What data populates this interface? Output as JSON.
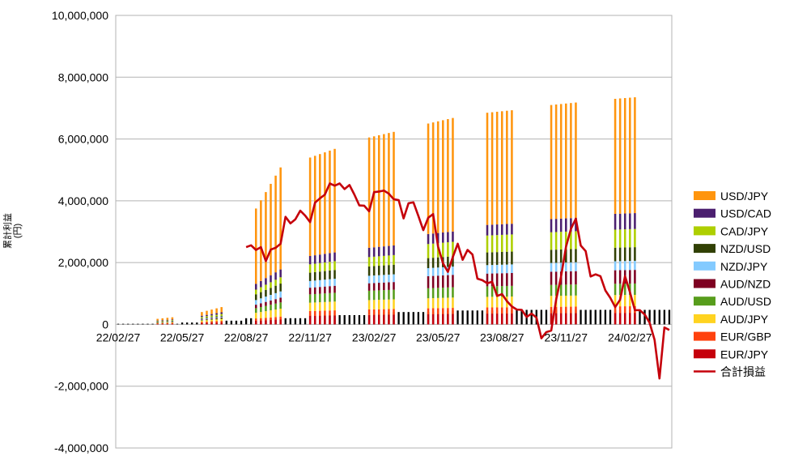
{
  "chart_data": {
    "type": "bar",
    "stacked": true,
    "ylabel": "累計利益\n(円)",
    "ylim": [
      -4000000,
      10000000
    ],
    "y_ticks": [
      "10,000,000",
      "8,000,000",
      "6,000,000",
      "4,000,000",
      "2,000,000",
      "0",
      "-2,000,000",
      "-4,000,000"
    ],
    "y_tick_values": [
      10000000,
      8000000,
      6000000,
      4000000,
      2000000,
      0,
      -2000000,
      -4000000
    ],
    "x_ticks": [
      "22/02/27",
      "22/05/27",
      "22/08/27",
      "22/11/27",
      "23/02/27",
      "23/05/27",
      "23/08/27",
      "23/11/27",
      "24/02/27"
    ],
    "x_tick_index": [
      0,
      13,
      26,
      39,
      52,
      65,
      78,
      91,
      104
    ],
    "grid": true,
    "legend_position": "right",
    "period_count": 113,
    "series_order": [
      "EUR/JPY",
      "EUR/GBP",
      "AUD/JPY",
      "AUD/USD",
      "AUD/NZD",
      "NZD/JPY",
      "NZD/USD",
      "CAD/JPY",
      "USD/CAD",
      "USD/JPY"
    ],
    "legend": [
      {
        "name": "USD/JPY",
        "color": "#ff950e"
      },
      {
        "name": "USD/CAD",
        "color": "#4b1f6f"
      },
      {
        "name": "CAD/JPY",
        "color": "#aecf00"
      },
      {
        "name": "NZD/USD",
        "color": "#314004"
      },
      {
        "name": "NZD/JPY",
        "color": "#83caff"
      },
      {
        "name": "AUD/NZD",
        "color": "#7e0021"
      },
      {
        "name": "AUD/USD",
        "color": "#579d1c"
      },
      {
        "name": "AUD/JPY",
        "color": "#ffd320"
      },
      {
        "name": "EUR/GBP",
        "color": "#ff420e"
      },
      {
        "name": "EUR/JPY",
        "color": "#c5000b"
      }
    ],
    "total_series": {
      "name": "合計損益",
      "color": "#c5000b"
    },
    "baseline_bars": [
      {
        "from": 0,
        "to": 12,
        "value": 20000
      },
      {
        "from": 13,
        "to": 18,
        "value": 60000
      },
      {
        "from": 19,
        "to": 25,
        "value": 120000
      },
      {
        "from": 26,
        "to": 38,
        "value": 200000
      },
      {
        "from": 39,
        "to": 51,
        "value": 300000
      },
      {
        "from": 52,
        "to": 64,
        "value": 400000
      },
      {
        "from": 65,
        "to": 77,
        "value": 450000
      },
      {
        "from": 78,
        "to": 112,
        "value": 470000
      }
    ],
    "stack_groups": [
      {
        "from": 8,
        "to": 11,
        "start_total": 180000,
        "end_total": 230000,
        "proportions": [
          0.1,
          0.1,
          0.1,
          0.05,
          0.05,
          0.05,
          0.05,
          0.1,
          0.1,
          0.3
        ]
      },
      {
        "from": 17,
        "to": 21,
        "start_total": 400000,
        "end_total": 560000,
        "proportions": [
          0.1,
          0.1,
          0.1,
          0.05,
          0.05,
          0.05,
          0.05,
          0.1,
          0.1,
          0.3
        ]
      },
      {
        "from": 28,
        "to": 33,
        "start_total": 3750000,
        "end_total": 5080000,
        "proportions": [
          0.03,
          0.02,
          0.05,
          0.04,
          0.03,
          0.04,
          0.05,
          0.04,
          0.05,
          0.65
        ]
      },
      {
        "from": 39,
        "to": 44,
        "start_total": 5400000,
        "end_total": 5680000,
        "proportions": [
          0.05,
          0.03,
          0.05,
          0.05,
          0.04,
          0.04,
          0.05,
          0.05,
          0.05,
          0.59
        ]
      },
      {
        "from": 51,
        "to": 56,
        "start_total": 6050000,
        "end_total": 6230000,
        "proportions": [
          0.05,
          0.03,
          0.05,
          0.05,
          0.04,
          0.04,
          0.05,
          0.05,
          0.05,
          0.59
        ]
      },
      {
        "from": 63,
        "to": 68,
        "start_total": 6500000,
        "end_total": 6680000,
        "proportions": [
          0.05,
          0.03,
          0.05,
          0.05,
          0.06,
          0.04,
          0.05,
          0.07,
          0.05,
          0.55
        ]
      },
      {
        "from": 75,
        "to": 80,
        "start_total": 6850000,
        "end_total": 6930000,
        "proportions": [
          0.05,
          0.03,
          0.05,
          0.05,
          0.06,
          0.04,
          0.06,
          0.08,
          0.05,
          0.53
        ]
      },
      {
        "from": 88,
        "to": 93,
        "start_total": 7100000,
        "end_total": 7180000,
        "proportions": [
          0.05,
          0.03,
          0.05,
          0.05,
          0.06,
          0.04,
          0.06,
          0.08,
          0.06,
          0.52
        ]
      },
      {
        "from": 101,
        "to": 105,
        "start_total": 7300000,
        "end_total": 7350000,
        "proportions": [
          0.05,
          0.03,
          0.05,
          0.05,
          0.06,
          0.04,
          0.06,
          0.08,
          0.07,
          0.51
        ]
      }
    ],
    "total_line": {
      "start_index": 26,
      "values": [
        2500000,
        2560000,
        2410000,
        2500000,
        2050000,
        2420000,
        2480000,
        2610000,
        3480000,
        3270000,
        3400000,
        3680000,
        3520000,
        3310000,
        3940000,
        4080000,
        4200000,
        4560000,
        4490000,
        4560000,
        4380000,
        4510000,
        4200000,
        3850000,
        3840000,
        3660000,
        4280000,
        4300000,
        4330000,
        4230000,
        4050000,
        4020000,
        3430000,
        3920000,
        3950000,
        3510000,
        3050000,
        3450000,
        3570000,
        2520000,
        1980000,
        1700000,
        2180000,
        2610000,
        2090000,
        2410000,
        2260000,
        1480000,
        1430000,
        1330000,
        1380000,
        920000,
        980000,
        750000,
        580000,
        480000,
        470000,
        240000,
        350000,
        220000,
        -450000,
        -250000,
        -200000,
        800000,
        1550000,
        2510000,
        3090000,
        3420000,
        2550000,
        2370000,
        1550000,
        1620000,
        1560000,
        1100000,
        860000,
        560000,
        800000,
        1560000,
        1040000,
        460000,
        460000,
        320000,
        50000,
        -500000,
        -1750000,
        -100000,
        -180000
      ]
    }
  }
}
